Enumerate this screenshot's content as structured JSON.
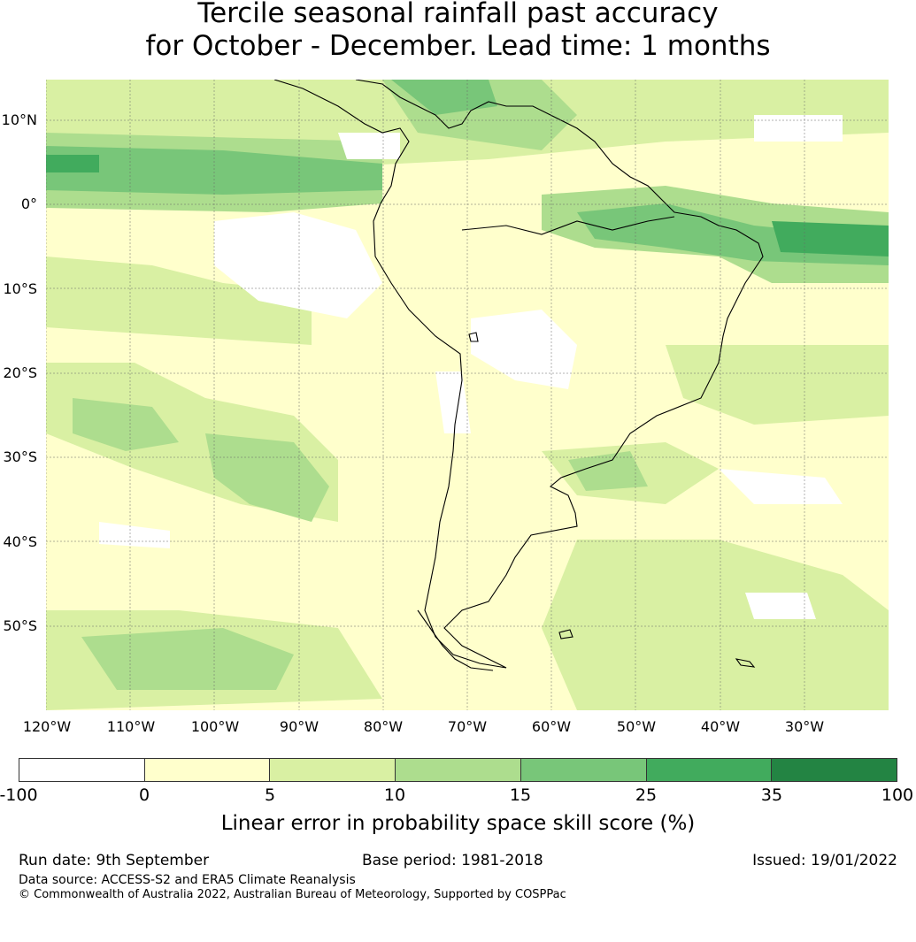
{
  "title": {
    "line1": "Tercile seasonal rainfall past accuracy",
    "line2": "for October - December. Lead time: 1 months"
  },
  "map": {
    "lat_labels": [
      "10°N",
      "0°",
      "10°S",
      "20°S",
      "30°S",
      "40°S",
      "50°S"
    ],
    "lon_labels": [
      "120°W",
      "110°W",
      "100°W",
      "90°W",
      "80°W",
      "70°W",
      "60°W",
      "50°W",
      "40°W",
      "30°W"
    ],
    "lat_range": [
      -60,
      15
    ],
    "lon_range": [
      -120,
      -20
    ],
    "gridlines": "dashed"
  },
  "colorbar": {
    "ticks": [
      "-100",
      "0",
      "5",
      "10",
      "15",
      "25",
      "35",
      "100"
    ],
    "colors": [
      "#ffffff",
      "#ffffcc",
      "#d9f0a3",
      "#addd8e",
      "#78c679",
      "#41ab5d",
      "#238443"
    ],
    "label": "Linear error in probability space skill score (%)"
  },
  "footer": {
    "run_date": "Run date: 9th September",
    "base_period": "Base period: 1981-2018",
    "issued": "Issued: 19/01/2022",
    "data_source": "Data source: ACCESS-S2 and ERA5 Climate Reanalysis",
    "copyright": "© Commonwealth of Australia 2022, Australian Bureau of Meteorology, Supported by COSPPac"
  }
}
